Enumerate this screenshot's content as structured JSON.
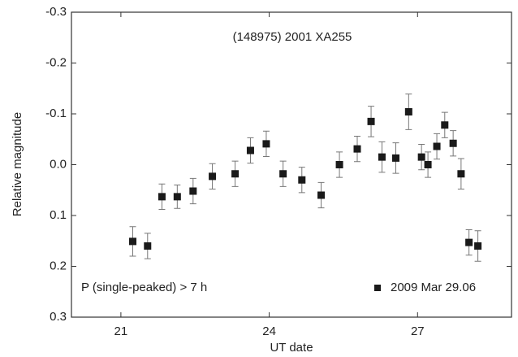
{
  "chart_data": {
    "type": "scatter",
    "title": "(148975) 2001 XA255",
    "annotation": "P (single-peaked) > 7 h",
    "x_label": "UT date",
    "y_label": "Relative magnitude",
    "xlim": [
      20,
      28.9
    ],
    "xticks": [
      21,
      24,
      27
    ],
    "ylim": [
      -0.3,
      0.3
    ],
    "y_inverted": true,
    "yticks": [
      -0.3,
      -0.2,
      -0.1,
      {
        "value": 0,
        "label": "0.0"
      },
      0.1,
      0.2,
      0.3
    ],
    "legend": "bottom-right",
    "series": [
      {
        "name": "2009 Mar 29.06",
        "color": "#1a1a1a",
        "x": [
          21.24,
          21.54,
          21.83,
          22.14,
          22.46,
          22.85,
          23.31,
          23.62,
          23.94,
          24.28,
          24.66,
          25.05,
          25.42,
          25.78,
          26.06,
          26.28,
          26.56,
          26.82,
          27.08,
          27.21,
          27.39,
          27.55,
          27.72,
          27.88,
          28.04,
          28.22
        ],
        "values": [
          0.151,
          0.16,
          0.063,
          0.063,
          0.052,
          0.023,
          0.018,
          -0.028,
          -0.041,
          0.018,
          0.03,
          0.06,
          0.0,
          -0.031,
          -0.085,
          -0.015,
          -0.013,
          -0.104,
          -0.015,
          0.0,
          -0.036,
          -0.078,
          -0.042,
          0.018,
          0.153,
          0.16
        ],
        "errors": [
          0.029,
          0.025,
          0.025,
          0.023,
          0.025,
          0.025,
          0.025,
          0.025,
          0.025,
          0.025,
          0.025,
          0.025,
          0.025,
          0.025,
          0.03,
          0.03,
          0.03,
          0.035,
          0.025,
          0.025,
          0.025,
          0.025,
          0.025,
          0.03,
          0.025,
          0.03
        ]
      }
    ]
  }
}
